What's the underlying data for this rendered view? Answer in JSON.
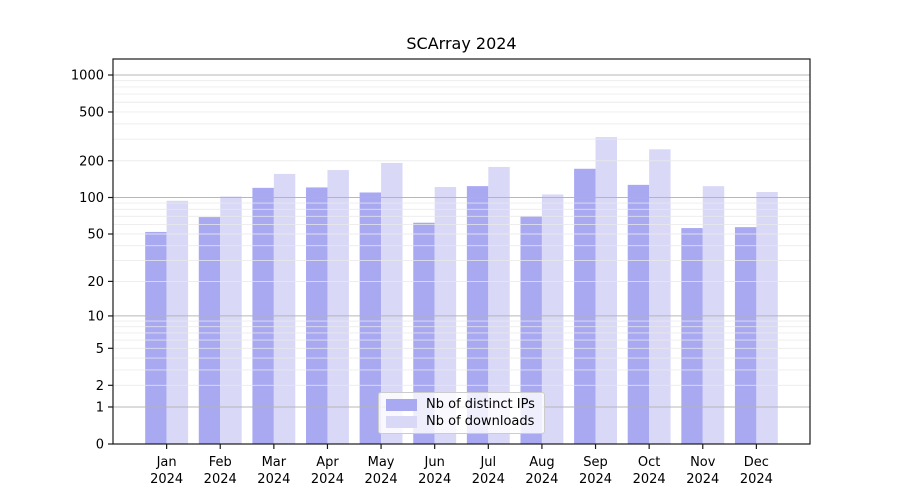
{
  "chart_data": {
    "type": "bar",
    "title": "SCArray 2024",
    "categories": [
      "Jan",
      "Feb",
      "Mar",
      "Apr",
      "May",
      "Jun",
      "Jul",
      "Aug",
      "Sep",
      "Oct",
      "Nov",
      "Dec"
    ],
    "category_year": "2024",
    "series": [
      {
        "name": "Nb of distinct IPs",
        "color": "#a9a9f2",
        "values": [
          52,
          69,
          120,
          121,
          110,
          62,
          124,
          70,
          172,
          127,
          56,
          57
        ]
      },
      {
        "name": "Nb of downloads",
        "color": "#d9d9f7",
        "values": [
          94,
          102,
          156,
          168,
          192,
          122,
          178,
          106,
          312,
          248,
          124,
          111
        ]
      }
    ],
    "xlabel": "",
    "ylabel": "",
    "yscale": "log1p",
    "yticks": [
      0,
      1,
      2,
      5,
      10,
      20,
      50,
      100,
      200,
      500,
      1000
    ],
    "ylim": [
      0,
      1350
    ],
    "grid": {
      "horizontal": true,
      "vertical": false,
      "major_gridlines_at": [
        1,
        10,
        100,
        1000
      ],
      "major_color": "#b3b3b3",
      "minor_color": "#e9e9e9"
    },
    "legend": {
      "position": "lower-center-inside",
      "background": "#ffffff",
      "border_color": "#cccccc"
    },
    "plot_background": "#ffffff",
    "spine_color": "#1a1a1a",
    "text_color": "#000000"
  }
}
